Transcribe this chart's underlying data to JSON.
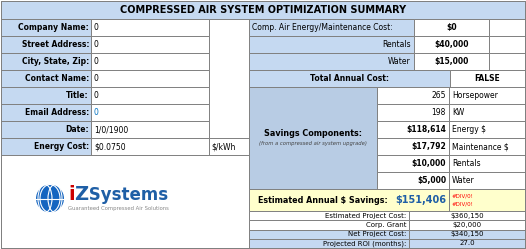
{
  "title": "COMPRESSED AIR SYSTEM OPTIMIZATION SUMMARY",
  "title_bg": "#c5d9f1",
  "light_blue_bg": "#c5d9f1",
  "savings_bg": "#b8cce4",
  "yellow_bg": "#ffffcc",
  "white_bg": "#ffffff",
  "border_color": "#808080",
  "left_labels": [
    "Company Name:",
    "Street Address:",
    "City, State, Zip:",
    "Contact Name:",
    "Title:",
    "Email Address:",
    "Date:",
    "Energy Cost:"
  ],
  "left_values": [
    "0",
    "0",
    "0",
    "0",
    "0",
    "0",
    "1/0/1900",
    "$0.0750"
  ],
  "energy_unit": "$/kWh",
  "right_top_rows": [
    {
      "label": "Comp. Air Energy/Maintenance Cost:",
      "value": "$0",
      "label_align": "left",
      "label_bold": false
    },
    {
      "label": "Rentals",
      "value": "$40,000",
      "label_align": "right",
      "label_bold": false
    },
    {
      "label": "Water",
      "value": "$15,000",
      "label_align": "right",
      "label_bold": false
    },
    {
      "label": "Total Annual Cost:",
      "value": "FALSE",
      "label_align": "center",
      "label_bold": true
    }
  ],
  "savings_label": "Savings Components:",
  "savings_sublabel": "(from a compressed air system upgrade)",
  "savings_rows": [
    [
      "265",
      "Horsepower"
    ],
    [
      "198",
      "KW"
    ],
    [
      "$118,614",
      "Energy $"
    ],
    [
      "$17,792",
      "Maintenance $"
    ],
    [
      "$10,000",
      "Rentals"
    ],
    [
      "$5,000",
      "Water"
    ]
  ],
  "estimated_label": "Estimated Annual $ Savings:",
  "estimated_value": "$151,406",
  "bottom_rows": [
    {
      "label": "Estimated Project Cost:",
      "value": "$360,150",
      "bold": false
    },
    {
      "label": "Corp. Grant",
      "value": "$20,000",
      "bold": false
    },
    {
      "label": "Net Project Cost:",
      "value": "$340,150",
      "bold": false
    },
    {
      "label": "Projected ROI (months):",
      "value": "27.0",
      "bold": false
    }
  ],
  "logo_text": "iZ Systems",
  "logo_sub": "Guaranteed Compressed Air Solutions",
  "logo_blue": "#1f5fa6",
  "logo_red": "#cc0000"
}
